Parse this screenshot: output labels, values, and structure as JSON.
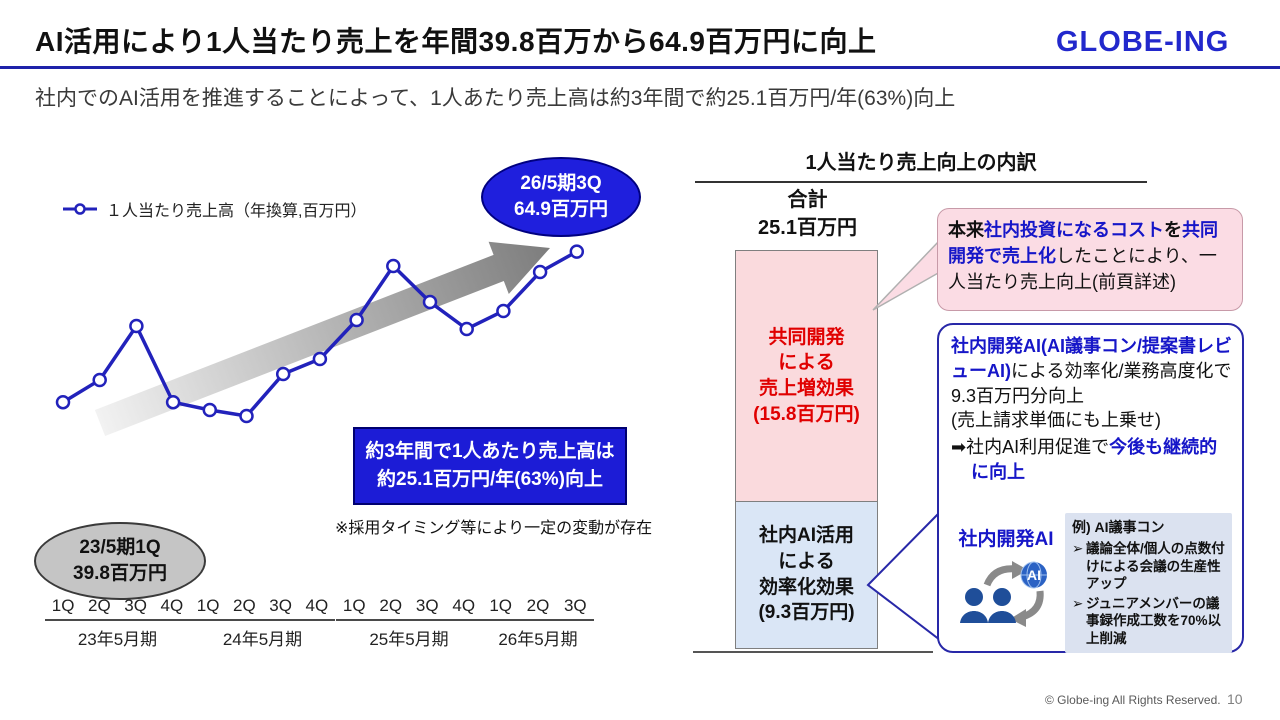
{
  "header": {
    "title": "AI活用により1人当たり売上を年間39.8百万から64.9百万円に向上",
    "logo": "GLOBE-ING",
    "subtitle": "社内でのAI活用を推進することによって、1人あたり売上高は約3年間で約25.1百万円/年(63%)向上"
  },
  "left_chart": {
    "legend": "１人当たり売上高（年換算,百万円）",
    "end_callout": {
      "line1": "26/5期3Q",
      "line2": "64.9百万円"
    },
    "start_callout": {
      "line1": "23/5期1Q",
      "line2": "39.8百万円"
    },
    "highlight_box": {
      "line1": "約3年間で1人あたり売上高は",
      "line2": "約25.1百万円/年(63%)向上"
    },
    "note": "※採用タイミング等により一定の変動が存在"
  },
  "chart_data": {
    "type": "line",
    "title": "１人当たり売上高（年換算,百万円）",
    "unit": "百万円/年",
    "line_color": "#2222bb",
    "values": [
      39.8,
      43.5,
      52.5,
      39.8,
      38.5,
      37.5,
      44.5,
      47.0,
      53.5,
      62.5,
      56.5,
      52.0,
      55.0,
      61.5,
      64.9
    ],
    "ylim": [
      36,
      66
    ],
    "grid": false,
    "annotations": [
      {
        "point": "23/5期1Q",
        "value": 39.8
      },
      {
        "point": "26/5期3Q",
        "value": 64.9
      }
    ],
    "fiscal_years": [
      {
        "year": "23年5月期",
        "quarters": [
          "1Q",
          "2Q",
          "3Q",
          "4Q"
        ]
      },
      {
        "year": "24年5月期",
        "quarters": [
          "1Q",
          "2Q",
          "3Q",
          "4Q"
        ]
      },
      {
        "year": "25年5月期",
        "quarters": [
          "1Q",
          "2Q",
          "3Q",
          "4Q"
        ]
      },
      {
        "year": "26年5月期",
        "quarters": [
          "1Q",
          "2Q",
          "3Q"
        ]
      }
    ]
  },
  "right_panel": {
    "title": "1人当たり売上向上の内訳",
    "total_label": {
      "line1": "合計",
      "line2": "25.1百万円"
    },
    "bar": {
      "total": 25.1,
      "segments": [
        {
          "name": "共同開発による売上増効果",
          "label": "共同開発\nによる\n売上増効果\n(15.8百万円)",
          "value": 15.8,
          "fill": "#fadadd",
          "text_color": "#e00000"
        },
        {
          "name": "社内AI活用による効率化効果",
          "label": "社内AI活用\nによる\n効率化効果\n(9.3百万円)",
          "value": 9.3,
          "fill": "#dae6f6",
          "text_color": "#111111"
        }
      ]
    },
    "pink_callout": {
      "r1": "本来",
      "r2": "社内投資になるコスト",
      "r3": "を",
      "r4": "共同開発で売上化",
      "r5": "したことにより、",
      "r6": "一人当たり売上向上(前頁詳述)"
    },
    "blue_box": {
      "r1": "社内開発AI(AI議事コン/提案書レビューAI)",
      "r2": "による効率化/業務高度化で9.3百万円分向上",
      "r3": "(売上請求単価にも上乗せ)",
      "r4": "➡社内AI利用促進で",
      "r5": "今後も継続的に向上",
      "ai_label": "社内開発AI",
      "ai_badge": "AI",
      "example": {
        "title": "例) AI議事コン",
        "marker": "➢",
        "bullets": [
          "議論全体/個人の点数付けによる会議の生産性アップ",
          "ジュニアメンバーの議事録作成工数を70%以上削減"
        ]
      }
    }
  },
  "footer": {
    "copyright": "© Globe-ing All Rights Reserved.",
    "page": "10"
  }
}
